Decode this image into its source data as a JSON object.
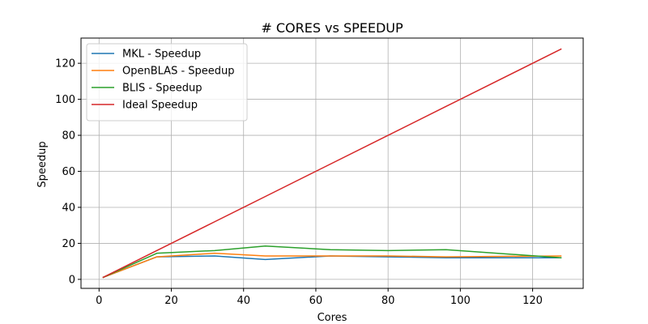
{
  "chart_data": {
    "type": "line",
    "title": "# CORES vs SPEEDUP",
    "xlabel": "Cores",
    "ylabel": "Speedup",
    "xlim": [
      -5,
      134
    ],
    "ylim": [
      -5,
      134
    ],
    "xticks": [
      0,
      20,
      40,
      60,
      80,
      100,
      120
    ],
    "yticks": [
      0,
      20,
      40,
      60,
      80,
      100,
      120
    ],
    "grid": true,
    "legend_position": "top-left",
    "x": [
      1,
      16,
      32,
      46,
      64,
      80,
      96,
      128
    ],
    "series": [
      {
        "name": "MKL - Speedup",
        "color": "#1f77b4",
        "values": [
          1,
          12.5,
          13,
          11,
          13,
          12.5,
          12,
          12
        ]
      },
      {
        "name": "OpenBLAS - Speedup",
        "color": "#ff7f0e",
        "values": [
          1,
          12.5,
          14.5,
          13,
          13,
          13,
          12.5,
          13
        ]
      },
      {
        "name": "BLIS - Speedup",
        "color": "#2ca02c",
        "values": [
          1,
          14.5,
          16,
          18.5,
          16.5,
          16,
          16.5,
          12
        ]
      },
      {
        "name": "Ideal Speedup",
        "color": "#d62728",
        "values": [
          1,
          16,
          32,
          46,
          64,
          80,
          96,
          128
        ]
      }
    ]
  }
}
